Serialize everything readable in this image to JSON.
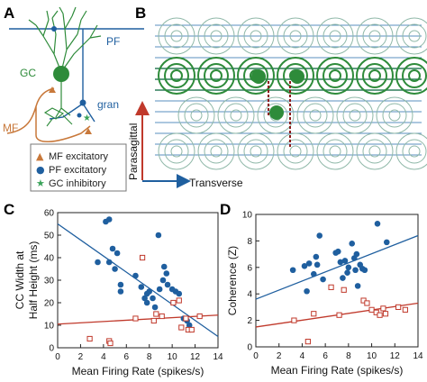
{
  "panels": {
    "a": {
      "label": "A",
      "pf": "PF",
      "gc": "GC",
      "gran": "gran",
      "mf": "MF",
      "legend": [
        {
          "symbol": "▲",
          "text": "MF excitatory",
          "color": "#c8783a"
        },
        {
          "symbol": "●",
          "text": "PF excitatory",
          "color": "#1f5f9f"
        },
        {
          "symbol": "★",
          "text": "GC inhibitory",
          "color": "#3aa35a"
        }
      ]
    },
    "b": {
      "label": "B",
      "parasagittal": "Parasagittal",
      "transverse": "Transverse"
    },
    "c": {
      "label": "C"
    },
    "d": {
      "label": "D"
    }
  },
  "colors": {
    "blue": "#1f5f9f",
    "green": "#2e8b3a",
    "orange": "#c8783a",
    "red": "#c0392b",
    "darkred": "#8b1a1a"
  },
  "chart_data": [
    {
      "type": "scatter",
      "xlabel": "Mean Firing Rate (spikes/s)",
      "ylabel": [
        "CC Width at",
        "Half Height (ms)"
      ],
      "xlim": [
        0,
        14
      ],
      "ylim": [
        0,
        60
      ],
      "xticks": [
        "0",
        "2",
        "4",
        "6",
        "8",
        "10",
        "12",
        "14"
      ],
      "yticks": [
        "0",
        "10",
        "20",
        "30",
        "40",
        "50",
        "60"
      ],
      "series": [
        {
          "marker": "filled-circle",
          "color": "#1f5f9f",
          "points": [
            [
              3.5,
              38
            ],
            [
              4.2,
              56
            ],
            [
              4.5,
              57
            ],
            [
              4.8,
              44
            ],
            [
              4.5,
              38
            ],
            [
              5.2,
              42
            ],
            [
              5.0,
              35
            ],
            [
              5.5,
              28
            ],
            [
              5.5,
              25
            ],
            [
              6.8,
              32
            ],
            [
              7.3,
              27
            ],
            [
              7.6,
              22
            ],
            [
              7.8,
              20
            ],
            [
              7.8,
              24
            ],
            [
              8.0,
              25
            ],
            [
              8.3,
              22
            ],
            [
              8.5,
              18
            ],
            [
              8.8,
              50
            ],
            [
              8.9,
              26
            ],
            [
              9.2,
              30
            ],
            [
              9.3,
              36
            ],
            [
              9.5,
              33
            ],
            [
              9.6,
              28
            ],
            [
              10.0,
              26
            ],
            [
              10.3,
              25
            ],
            [
              10.6,
              24
            ],
            [
              11.0,
              13
            ],
            [
              11.5,
              10
            ],
            [
              11.3,
              12
            ]
          ]
        },
        {
          "marker": "open-square",
          "color": "#c0392b",
          "points": [
            [
              2.8,
              4
            ],
            [
              4.5,
              3
            ],
            [
              4.6,
              2
            ],
            [
              6.8,
              13
            ],
            [
              7.4,
              40
            ],
            [
              8.4,
              12
            ],
            [
              8.6,
              15
            ],
            [
              9.1,
              14
            ],
            [
              10.1,
              20
            ],
            [
              10.6,
              21
            ],
            [
              10.8,
              9
            ],
            [
              11.2,
              13
            ],
            [
              11.4,
              8
            ],
            [
              11.7,
              8
            ],
            [
              12.4,
              14
            ]
          ]
        }
      ],
      "fits": [
        {
          "color": "#1f5f9f",
          "from": [
            0,
            55
          ],
          "to": [
            14,
            5
          ]
        },
        {
          "color": "#c0392b",
          "from": [
            0,
            10.5
          ],
          "to": [
            14,
            14.5
          ]
        }
      ]
    },
    {
      "type": "scatter",
      "xlabel": "Mean Firing Rate (spikes/s)",
      "ylabel": [
        "Coherence (Z)"
      ],
      "xlim": [
        0,
        14
      ],
      "ylim": [
        0,
        10
      ],
      "xticks": [
        "0",
        "2",
        "4",
        "6",
        "8",
        "10",
        "12",
        "14"
      ],
      "yticks": [
        "0",
        "2",
        "4",
        "6",
        "8",
        "10"
      ],
      "series": [
        {
          "marker": "filled-circle",
          "color": "#1f5f9f",
          "points": [
            [
              3.2,
              5.8
            ],
            [
              4.2,
              6.1
            ],
            [
              4.4,
              4.2
            ],
            [
              4.6,
              6.3
            ],
            [
              5.0,
              5.5
            ],
            [
              5.2,
              6.8
            ],
            [
              5.3,
              6.2
            ],
            [
              5.5,
              8.4
            ],
            [
              5.8,
              5.1
            ],
            [
              6.9,
              7.1
            ],
            [
              7.1,
              7.2
            ],
            [
              7.3,
              6.4
            ],
            [
              7.5,
              5.2
            ],
            [
              7.7,
              6.5
            ],
            [
              7.9,
              5.6
            ],
            [
              8.0,
              6.0
            ],
            [
              8.3,
              7.8
            ],
            [
              8.5,
              6.7
            ],
            [
              8.6,
              5.8
            ],
            [
              8.7,
              7.0
            ],
            [
              8.8,
              4.6
            ],
            [
              9.0,
              6.2
            ],
            [
              9.2,
              5.9
            ],
            [
              9.4,
              5.8
            ],
            [
              10.5,
              9.3
            ],
            [
              11.3,
              7.9
            ]
          ]
        },
        {
          "marker": "open-square",
          "color": "#c0392b",
          "points": [
            [
              3.3,
              2.0
            ],
            [
              4.5,
              0.4
            ],
            [
              5.0,
              2.5
            ],
            [
              6.5,
              4.5
            ],
            [
              7.2,
              2.4
            ],
            [
              7.6,
              4.3
            ],
            [
              9.3,
              3.5
            ],
            [
              9.6,
              3.3
            ],
            [
              10.0,
              2.8
            ],
            [
              10.4,
              2.6
            ],
            [
              10.7,
              2.4
            ],
            [
              11.0,
              2.9
            ],
            [
              11.2,
              2.5
            ],
            [
              12.3,
              3.0
            ],
            [
              12.9,
              2.8
            ]
          ]
        }
      ],
      "fits": [
        {
          "color": "#1f5f9f",
          "from": [
            0,
            3.6
          ],
          "to": [
            14,
            8.4
          ]
        },
        {
          "color": "#c0392b",
          "from": [
            0,
            1.5
          ],
          "to": [
            14,
            3.3
          ]
        }
      ]
    }
  ]
}
